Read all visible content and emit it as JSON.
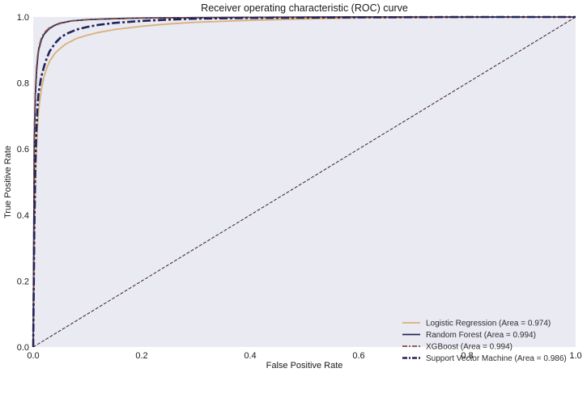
{
  "chart_data": {
    "type": "line",
    "title": "Receiver operating characteristic (ROC) curve",
    "xlabel": "False Positive Rate",
    "ylabel": "True Positive Rate",
    "xlim": [
      0.0,
      1.0
    ],
    "ylim": [
      0.0,
      1.0
    ],
    "xticks": [
      "0.0",
      "0.2",
      "0.4",
      "0.6",
      "0.8",
      "1.0"
    ],
    "yticks": [
      "0.0",
      "0.2",
      "0.4",
      "0.6",
      "0.8",
      "1.0"
    ],
    "grid": false,
    "legend_position": "lower-right",
    "background_color": "#eaeaf2",
    "series": [
      {
        "name": "Logistic Regression (Area = 0.974)",
        "color": "#d9b07a",
        "style": "solid",
        "x": [
          0,
          0.001,
          0.002,
          0.004,
          0.006,
          0.008,
          0.01,
          0.015,
          0.02,
          0.025,
          0.03,
          0.04,
          0.05,
          0.06,
          0.08,
          0.1,
          0.12,
          0.15,
          0.2,
          0.25,
          0.3,
          0.4,
          0.5,
          0.6,
          0.7,
          0.8,
          0.9,
          1.0
        ],
        "y": [
          0,
          0.12,
          0.3,
          0.5,
          0.6,
          0.67,
          0.72,
          0.78,
          0.82,
          0.845,
          0.865,
          0.89,
          0.905,
          0.918,
          0.935,
          0.945,
          0.953,
          0.962,
          0.972,
          0.979,
          0.984,
          0.99,
          0.994,
          0.997,
          0.998,
          0.999,
          1.0,
          1.0
        ]
      },
      {
        "name": "Random Forest (Area = 0.994)",
        "color": "#2a2550",
        "style": "solid",
        "x": [
          0,
          0.002,
          0.004,
          0.006,
          0.008,
          0.01,
          0.015,
          0.02,
          0.03,
          0.04,
          0.05,
          0.07,
          0.1,
          0.15,
          0.2,
          0.3,
          0.4,
          0.6,
          0.8,
          1.0
        ],
        "y": [
          0,
          0.62,
          0.76,
          0.83,
          0.87,
          0.9,
          0.93,
          0.948,
          0.965,
          0.975,
          0.981,
          0.988,
          0.992,
          0.995,
          0.997,
          0.998,
          0.999,
          1.0,
          1.0,
          1.0
        ]
      },
      {
        "name": "XGBoost (Area = 0.994)",
        "color": "#7a4f4a",
        "style": "dashdot",
        "x": [
          0,
          0.002,
          0.004,
          0.006,
          0.008,
          0.01,
          0.015,
          0.02,
          0.03,
          0.04,
          0.05,
          0.07,
          0.1,
          0.15,
          0.2,
          0.3,
          0.4,
          0.6,
          0.8,
          1.0
        ],
        "y": [
          0,
          0.65,
          0.78,
          0.845,
          0.88,
          0.905,
          0.935,
          0.952,
          0.967,
          0.976,
          0.982,
          0.988,
          0.992,
          0.995,
          0.997,
          0.998,
          0.999,
          1.0,
          1.0,
          1.0
        ]
      },
      {
        "name": "Support Vector Machine (Area = 0.986)",
        "color": "#23235a",
        "style": "dashdot-thick",
        "x": [
          0,
          0.002,
          0.004,
          0.006,
          0.008,
          0.01,
          0.015,
          0.02,
          0.025,
          0.03,
          0.04,
          0.05,
          0.06,
          0.08,
          0.1,
          0.12,
          0.15,
          0.2,
          0.25,
          0.3,
          0.4,
          0.5,
          0.6,
          0.8,
          1.0
        ],
        "y": [
          0,
          0.35,
          0.55,
          0.66,
          0.73,
          0.77,
          0.82,
          0.85,
          0.875,
          0.895,
          0.92,
          0.937,
          0.948,
          0.962,
          0.97,
          0.976,
          0.982,
          0.988,
          0.992,
          0.995,
          0.997,
          0.998,
          0.999,
          1.0,
          1.0
        ]
      }
    ],
    "reference_line": {
      "color": "#3a1e2e",
      "style": "dashed",
      "x": [
        0,
        1
      ],
      "y": [
        0,
        1
      ]
    }
  }
}
